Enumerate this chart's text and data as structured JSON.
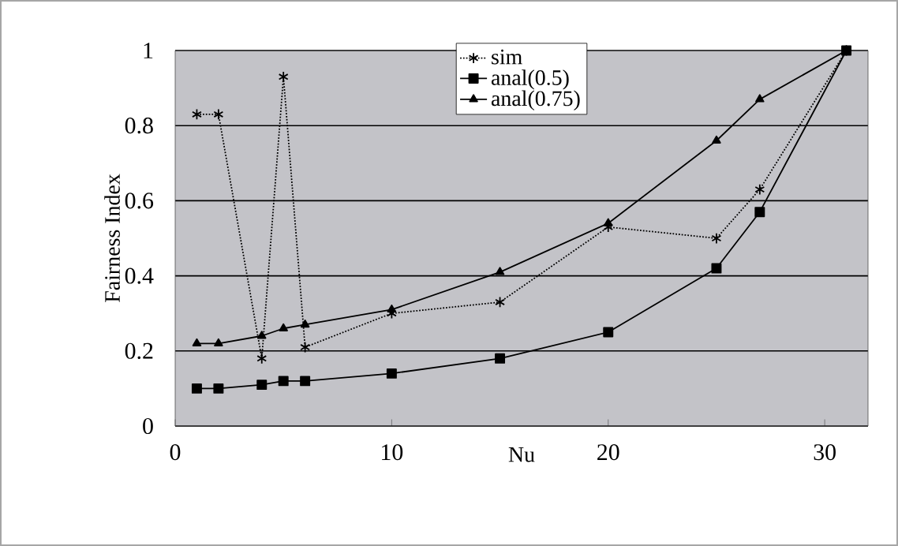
{
  "chart_data": {
    "type": "line",
    "xlabel": "Nu",
    "ylabel": "Fairness Index",
    "xlim": [
      0,
      32
    ],
    "xticks": [
      0,
      10,
      20,
      30
    ],
    "ylim": [
      0,
      1
    ],
    "yticks": [
      0,
      0.2,
      0.4,
      0.6,
      0.8,
      1
    ],
    "grid": "y",
    "legend": "top",
    "series": [
      {
        "name": "sim",
        "color": "#000000",
        "marker": "cross",
        "line_style": "dotted",
        "x": [
          1,
          2,
          4,
          5,
          6,
          10,
          15,
          20,
          25,
          27,
          31
        ],
        "values": [
          0.83,
          0.83,
          0.18,
          0.93,
          0.21,
          0.3,
          0.33,
          0.53,
          0.5,
          0.63,
          1.0
        ]
      },
      {
        "name": "anal(0.5)",
        "color": "#000000",
        "marker": "square",
        "line_style": "solid",
        "x": [
          1,
          2,
          4,
          5,
          6,
          10,
          15,
          20,
          25,
          27,
          31
        ],
        "values": [
          0.1,
          0.1,
          0.11,
          0.12,
          0.12,
          0.14,
          0.18,
          0.25,
          0.42,
          0.57,
          1.0
        ]
      },
      {
        "name": "anal(0.75)",
        "color": "#000000",
        "marker": "triangle",
        "line_style": "solid",
        "x": [
          1,
          2,
          4,
          5,
          6,
          10,
          15,
          20,
          25,
          27,
          31
        ],
        "values": [
          0.22,
          0.22,
          0.24,
          0.26,
          0.27,
          0.31,
          0.41,
          0.54,
          0.76,
          0.87,
          1.0
        ]
      }
    ]
  }
}
